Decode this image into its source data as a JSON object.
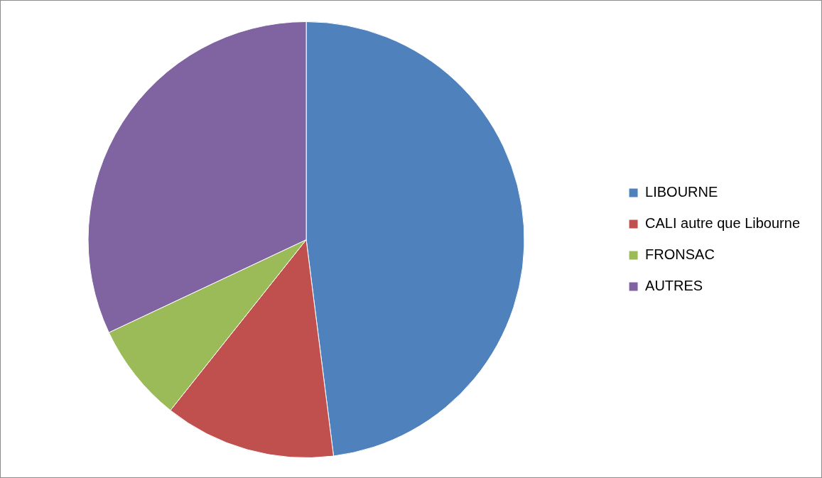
{
  "chart_data": {
    "type": "pie",
    "categories": [
      "LIBOURNE",
      "CALI autre que Libourne",
      "FRONSAC",
      "AUTRES"
    ],
    "values": [
      48,
      12.7,
      7.3,
      32
    ],
    "colors": [
      "#4f81bd",
      "#c0504d",
      "#9bbb59",
      "#8064a2"
    ],
    "legend": "right"
  }
}
